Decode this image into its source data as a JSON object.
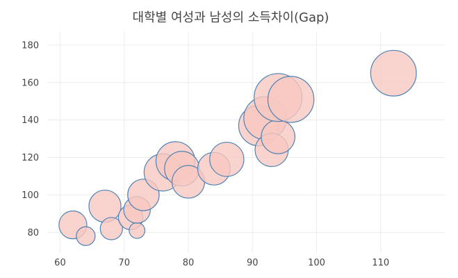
{
  "chart_data": {
    "type": "scatter",
    "title": "대학별 여성과 남성의 소득차이(Gap)",
    "xlabel": "",
    "ylabel": "",
    "xlim": [
      58,
      120
    ],
    "ylim": [
      69,
      187
    ],
    "x_ticks": [
      60,
      70,
      80,
      90,
      100,
      110
    ],
    "y_ticks": [
      80,
      100,
      120,
      140,
      160,
      180
    ],
    "grid": true,
    "legend": "none",
    "colors": {
      "fill": "#f7c8c1",
      "stroke": "#4f82b5",
      "grid": "#ececec",
      "text": "#444444"
    },
    "series": [
      {
        "points": [
          {
            "x": 62,
            "y": 84,
            "size": 22
          },
          {
            "x": 64,
            "y": 78,
            "size": 10
          },
          {
            "x": 67,
            "y": 94,
            "size": 29
          },
          {
            "x": 68,
            "y": 82,
            "size": 14
          },
          {
            "x": 71,
            "y": 88,
            "size": 17
          },
          {
            "x": 72,
            "y": 81,
            "size": 7
          },
          {
            "x": 72,
            "y": 92,
            "size": 20
          },
          {
            "x": 73,
            "y": 100,
            "size": 28
          },
          {
            "x": 76,
            "y": 112,
            "size": 39
          },
          {
            "x": 78,
            "y": 118,
            "size": 43
          },
          {
            "x": 79,
            "y": 114,
            "size": 34
          },
          {
            "x": 80,
            "y": 107,
            "size": 30
          },
          {
            "x": 84,
            "y": 114,
            "size": 30
          },
          {
            "x": 86,
            "y": 119,
            "size": 33
          },
          {
            "x": 91,
            "y": 137,
            "size": 46
          },
          {
            "x": 92,
            "y": 141,
            "size": 52
          },
          {
            "x": 93,
            "y": 124,
            "size": 31
          },
          {
            "x": 94,
            "y": 131,
            "size": 32
          },
          {
            "x": 94,
            "y": 152,
            "size": 65
          },
          {
            "x": 96,
            "y": 151,
            "size": 60
          },
          {
            "x": 112,
            "y": 165,
            "size": 59
          }
        ]
      }
    ]
  }
}
